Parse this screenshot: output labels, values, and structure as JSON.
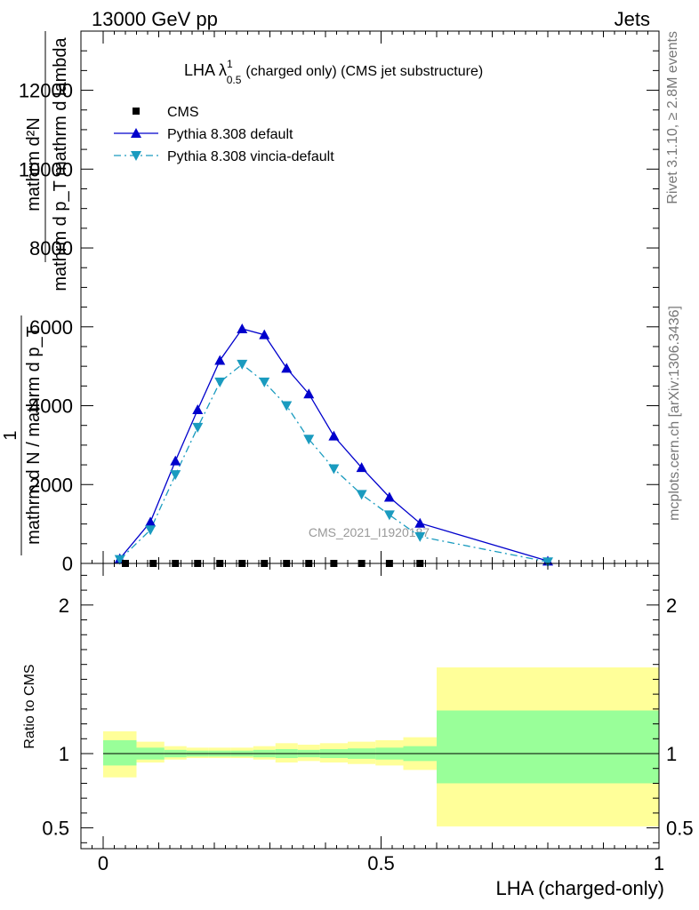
{
  "header": {
    "left": "13000 GeV pp",
    "right": "Jets"
  },
  "side_texts": {
    "rivet": "Rivet 3.1.10, ≥ 2.8M events",
    "mcplots": "mcplots.cern.ch [arXiv:1306.3436]"
  },
  "chart_data": [
    {
      "type": "line",
      "title_main": "LHA λ",
      "title_sup": "1",
      "title_sub": "0.5",
      "title_rest": "(charged only) (CMS jet substructure)",
      "ylabel_numerator": "mathrm d²N",
      "ylabel_denominator": "mathrm d p_T mathrm d lambda",
      "ylabel_prefix": "1",
      "ylabel_prefix_denominator": "mathrm d N / mathrm d p_T",
      "ylim": [
        0,
        13500
      ],
      "xlim": [
        -0.04,
        1.0
      ],
      "y_ticks": [
        0,
        2000,
        4000,
        6000,
        8000,
        10000,
        12000
      ],
      "y_tick_labels": [
        "0",
        "2000",
        "4000",
        "6000",
        "8000",
        "10000",
        "12000"
      ],
      "watermark": "CMS_2021_I1920187",
      "legend": {
        "placement": "top-left"
      },
      "series": [
        {
          "name": "CMS",
          "color": "#000000",
          "marker": "square",
          "x": [
            0.04,
            0.09,
            0.13,
            0.17,
            0.21,
            0.25,
            0.29,
            0.33,
            0.37,
            0.415,
            0.465,
            0.515,
            0.57
          ],
          "y": [
            0,
            0,
            0,
            0,
            0,
            0,
            0,
            0,
            0,
            0,
            0,
            0,
            0
          ]
        },
        {
          "name": "Pythia 8.308 default",
          "color": "#0000cc",
          "marker": "triangle-up",
          "line": "solid",
          "x": [
            0.03,
            0.085,
            0.13,
            0.17,
            0.21,
            0.25,
            0.29,
            0.33,
            0.37,
            0.415,
            0.465,
            0.515,
            0.57,
            0.8
          ],
          "y": [
            120,
            1050,
            2600,
            3900,
            5150,
            5950,
            5800,
            4950,
            4300,
            3230,
            2430,
            1680,
            1020,
            60
          ]
        },
        {
          "name": "Pythia 8.308 vincia-default",
          "color": "#1a9bbf",
          "marker": "triangle-down",
          "line": "dashdot",
          "x": [
            0.03,
            0.085,
            0.13,
            0.17,
            0.21,
            0.25,
            0.29,
            0.33,
            0.37,
            0.415,
            0.465,
            0.515,
            0.57,
            0.8
          ],
          "y": [
            100,
            850,
            2250,
            3450,
            4600,
            5050,
            4600,
            4000,
            3150,
            2400,
            1750,
            1230,
            680,
            40
          ]
        }
      ]
    },
    {
      "type": "area",
      "ylabel": "Ratio to CMS",
      "xlabel": "LHA (charged-only)",
      "ylim": [
        0.36,
        2.28
      ],
      "xlim": [
        -0.04,
        1.0
      ],
      "y_ticks": [
        0.5,
        1,
        2
      ],
      "y_tick_labels": [
        "0.5",
        "1",
        "2"
      ],
      "x_ticks": [
        0,
        0.5,
        1
      ],
      "x_tick_labels": [
        "0",
        "0.5",
        "1"
      ],
      "reference_line": 1,
      "band_colors": {
        "inner": "#99ff99",
        "outer": "#ffff99",
        "reference": "#000000"
      },
      "bins": [
        {
          "lo": 0.0,
          "hi": 0.06,
          "inner": [
            0.92,
            1.09
          ],
          "outer": [
            0.84,
            1.15
          ]
        },
        {
          "lo": 0.06,
          "hi": 0.11,
          "inner": [
            0.96,
            1.04
          ],
          "outer": [
            0.94,
            1.08
          ]
        },
        {
          "lo": 0.11,
          "hi": 0.15,
          "inner": [
            0.975,
            1.025
          ],
          "outer": [
            0.96,
            1.05
          ]
        },
        {
          "lo": 0.15,
          "hi": 0.19,
          "inner": [
            0.98,
            1.02
          ],
          "outer": [
            0.97,
            1.04
          ]
        },
        {
          "lo": 0.19,
          "hi": 0.23,
          "inner": [
            0.98,
            1.02
          ],
          "outer": [
            0.97,
            1.04
          ]
        },
        {
          "lo": 0.23,
          "hi": 0.27,
          "inner": [
            0.98,
            1.02
          ],
          "outer": [
            0.97,
            1.04
          ]
        },
        {
          "lo": 0.27,
          "hi": 0.31,
          "inner": [
            0.975,
            1.025
          ],
          "outer": [
            0.96,
            1.05
          ]
        },
        {
          "lo": 0.31,
          "hi": 0.35,
          "inner": [
            0.97,
            1.03
          ],
          "outer": [
            0.94,
            1.07
          ]
        },
        {
          "lo": 0.35,
          "hi": 0.39,
          "inner": [
            0.975,
            1.025
          ],
          "outer": [
            0.95,
            1.06
          ]
        },
        {
          "lo": 0.39,
          "hi": 0.44,
          "inner": [
            0.97,
            1.03
          ],
          "outer": [
            0.94,
            1.07
          ]
        },
        {
          "lo": 0.44,
          "hi": 0.49,
          "inner": [
            0.965,
            1.035
          ],
          "outer": [
            0.93,
            1.08
          ]
        },
        {
          "lo": 0.49,
          "hi": 0.54,
          "inner": [
            0.96,
            1.04
          ],
          "outer": [
            0.92,
            1.09
          ]
        },
        {
          "lo": 0.54,
          "hi": 0.6,
          "inner": [
            0.95,
            1.05
          ],
          "outer": [
            0.89,
            1.11
          ]
        },
        {
          "lo": 0.6,
          "hi": 1.0,
          "inner": [
            0.8,
            1.29
          ],
          "outer": [
            0.51,
            1.58
          ]
        }
      ]
    }
  ]
}
